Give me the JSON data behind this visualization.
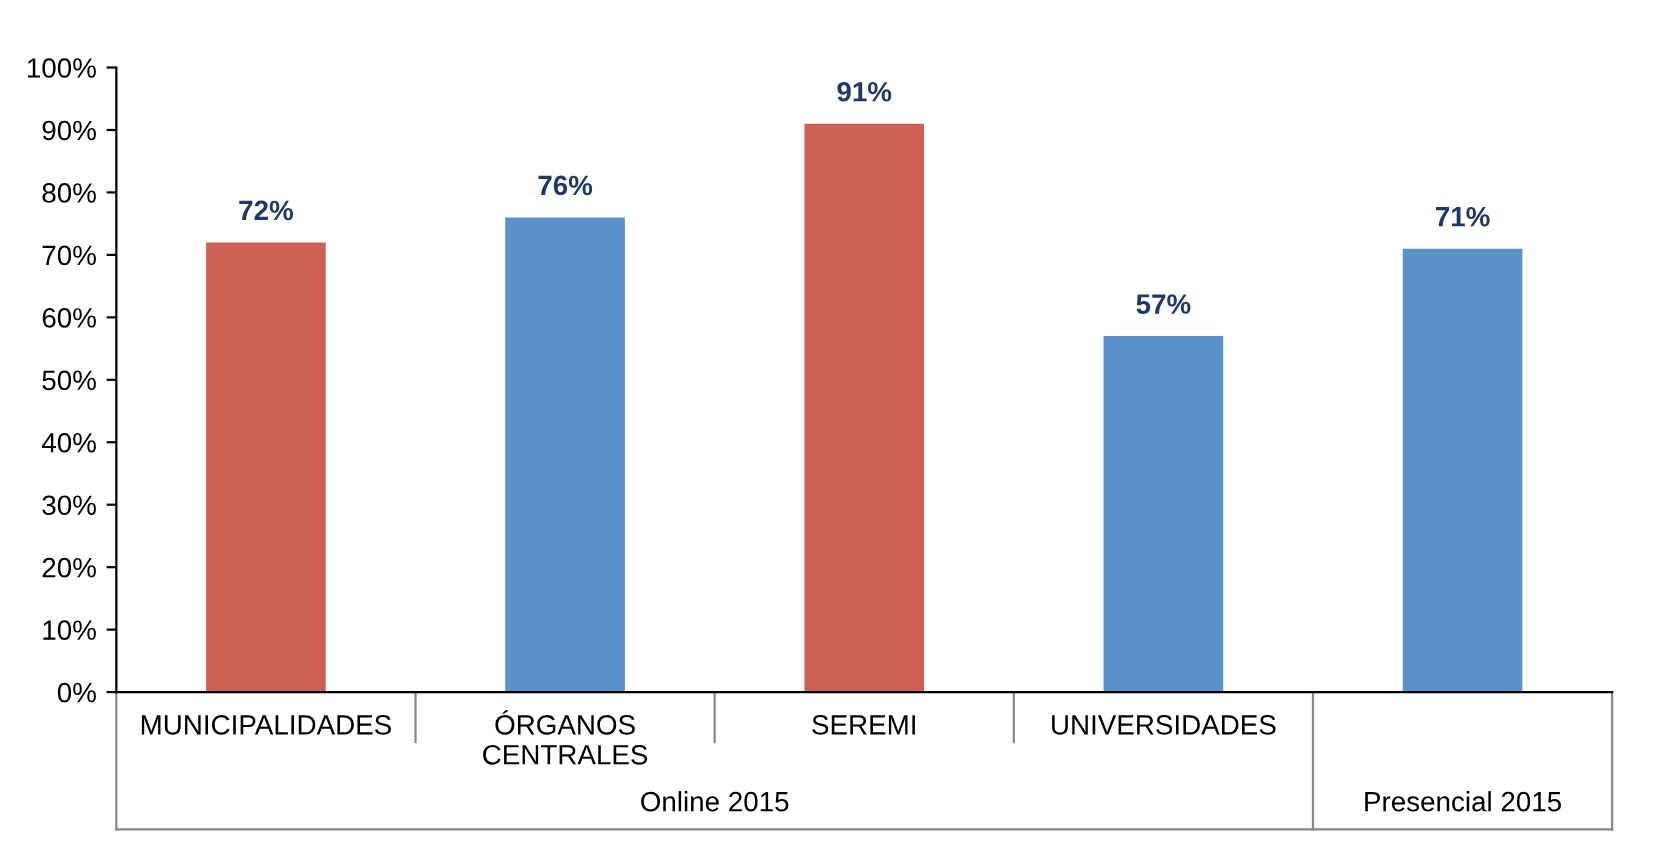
{
  "chart_data": {
    "type": "bar",
    "categories": [
      "MUNICIPALIDADES",
      "ÓRGANOS\nCENTRALES",
      "SEREMI",
      "UNIVERSIDADES",
      null
    ],
    "values": [
      72,
      76,
      91,
      57,
      71
    ],
    "colors": [
      "#cd6155",
      "#5b92c9",
      "#cd6155",
      "#5b92c9",
      "#5b92c9"
    ],
    "value_labels": [
      "72%",
      "76%",
      "91%",
      "57%",
      "71%"
    ],
    "ylim": [
      0,
      100
    ],
    "yticks": [
      {
        "value": 0,
        "label": "0%"
      },
      {
        "value": 10,
        "label": "10%"
      },
      {
        "value": 20,
        "label": "20%"
      },
      {
        "value": 30,
        "label": "30%"
      },
      {
        "value": 40,
        "label": "40%"
      },
      {
        "value": 50,
        "label": "50%"
      },
      {
        "value": 60,
        "label": "60%"
      },
      {
        "value": 70,
        "label": "70%"
      },
      {
        "value": 80,
        "label": "80%"
      },
      {
        "value": 90,
        "label": "90%"
      },
      {
        "value": 100,
        "label": "100%"
      }
    ],
    "annotations": [
      "Online 2015",
      "Presencial 2015"
    ],
    "grid": false,
    "legend": false
  }
}
